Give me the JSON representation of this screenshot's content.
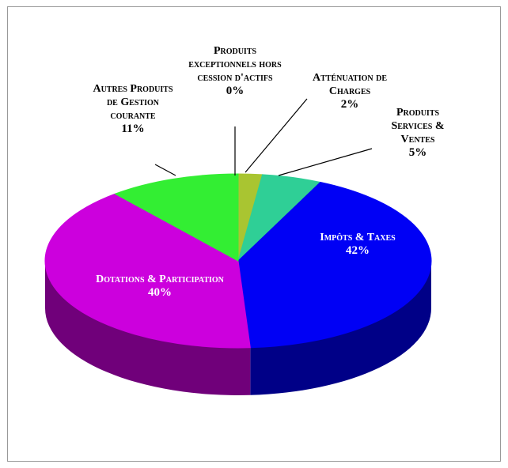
{
  "chart_data": {
    "type": "pie3d",
    "categories": [
      "Produits exceptionnels hors cession d'actifs",
      "Atténuation de Charges",
      "Produits Services & Ventes",
      "Impôts & Taxes",
      "Dotations & Participation",
      "Autres Produits de Gestion courante"
    ],
    "values": [
      0,
      2,
      5,
      42,
      40,
      11
    ],
    "value_labels": [
      "0%",
      "2%",
      "5%",
      "42%",
      "40%",
      "11%"
    ],
    "colors": [
      "#d9d9d9",
      "#a9c531",
      "#2fcf96",
      "#0000f5",
      "#cc00dd",
      "#33ee33"
    ]
  }
}
